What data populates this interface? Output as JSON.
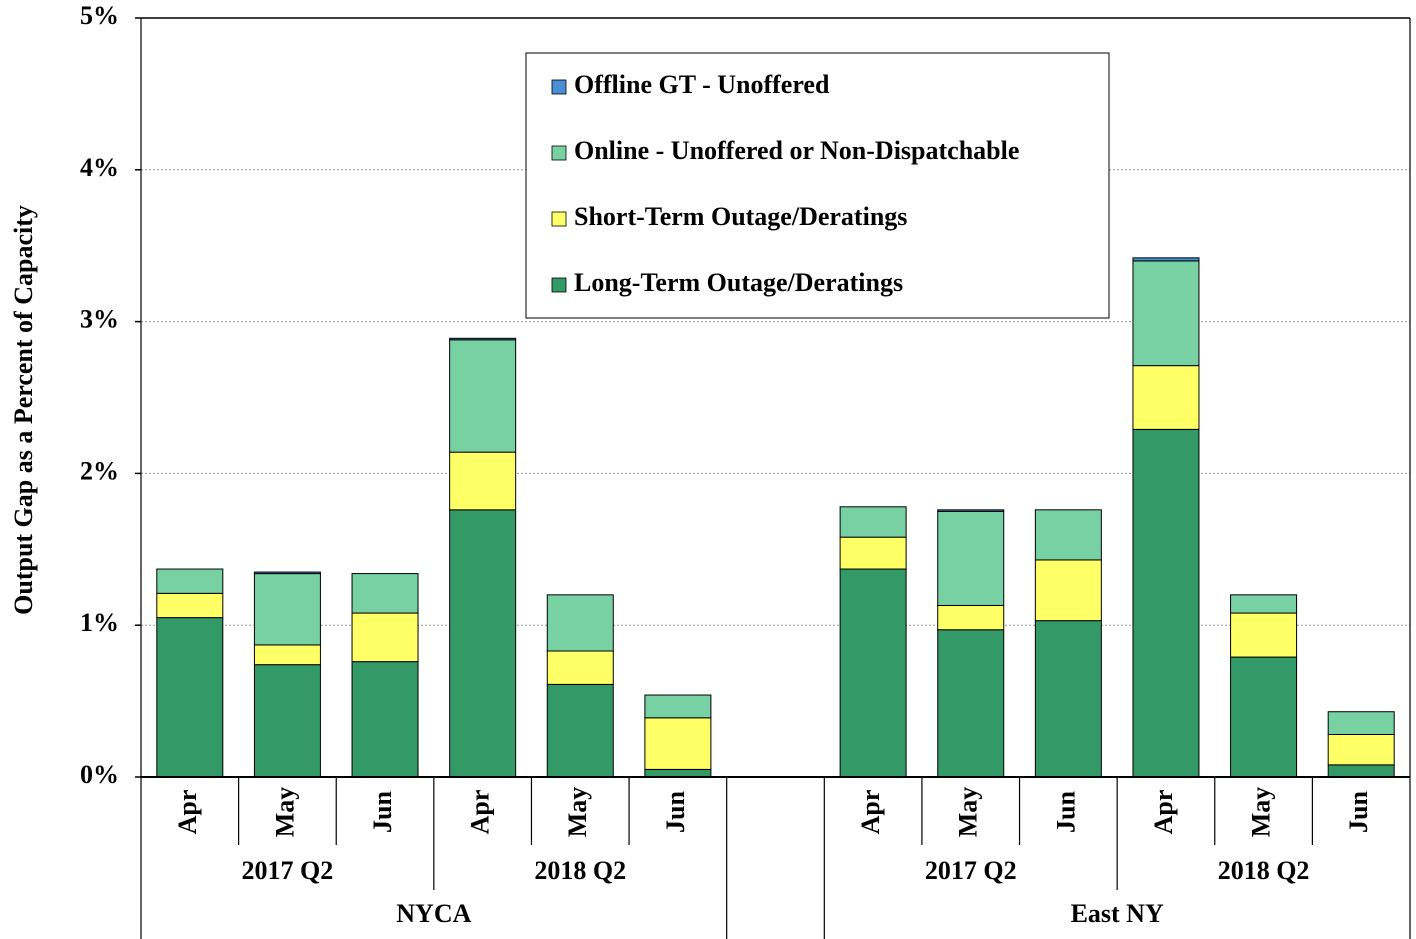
{
  "chart_data": {
    "type": "stacked_bar",
    "y_label": "Output Gap as a Percent of Capacity",
    "categories": [
      "Apr",
      "May",
      "Jun",
      "Apr",
      "May",
      "Jun",
      null,
      "Apr",
      "May",
      "Jun",
      "Apr",
      "May",
      "Jun"
    ],
    "quarters": [
      "2017 Q2",
      "2017 Q2",
      "2017 Q2",
      "2018 Q2",
      "2018 Q2",
      "2018 Q2",
      null,
      "2017 Q2",
      "2017 Q2",
      "2017 Q2",
      "2018 Q2",
      "2018 Q2",
      "2018 Q2"
    ],
    "regions": [
      "NYCA",
      "NYCA",
      "NYCA",
      "NYCA",
      "NYCA",
      "NYCA",
      null,
      "East NY",
      "East NY",
      "East NY",
      "East NY",
      "East NY",
      "East NY"
    ],
    "series": [
      {
        "name": "Long-Term Outage/Deratings",
        "color": "#339966",
        "values": [
          1.05,
          0.74,
          0.76,
          1.76,
          0.61,
          0.05,
          null,
          1.37,
          0.97,
          1.03,
          2.29,
          0.79,
          0.08
        ]
      },
      {
        "name": "Short-Term Outage/Deratings",
        "color": "#ffff66",
        "values": [
          0.16,
          0.13,
          0.32,
          0.38,
          0.22,
          0.34,
          null,
          0.21,
          0.16,
          0.4,
          0.42,
          0.29,
          0.2
        ]
      },
      {
        "name": "Online - Unoffered or Non-Dispatchable",
        "color": "#77d1a3",
        "values": [
          0.16,
          0.47,
          0.26,
          0.74,
          0.37,
          0.15,
          null,
          0.2,
          0.62,
          0.33,
          0.69,
          0.12,
          0.15
        ]
      },
      {
        "name": "Offline GT - Unoffered",
        "color": "#4a8fd6",
        "values": [
          0,
          0.01,
          0,
          0.01,
          0,
          0,
          null,
          0,
          0.01,
          0,
          0.02,
          0,
          0
        ]
      }
    ],
    "ylim": [
      0,
      5
    ],
    "yticks": [
      {
        "value": 0,
        "label": "0%"
      },
      {
        "value": 1,
        "label": "1%"
      },
      {
        "value": 2,
        "label": "2%"
      },
      {
        "value": 3,
        "label": "3%"
      },
      {
        "value": 4,
        "label": "4%"
      },
      {
        "value": 5,
        "label": "5%"
      }
    ],
    "grid": true
  }
}
